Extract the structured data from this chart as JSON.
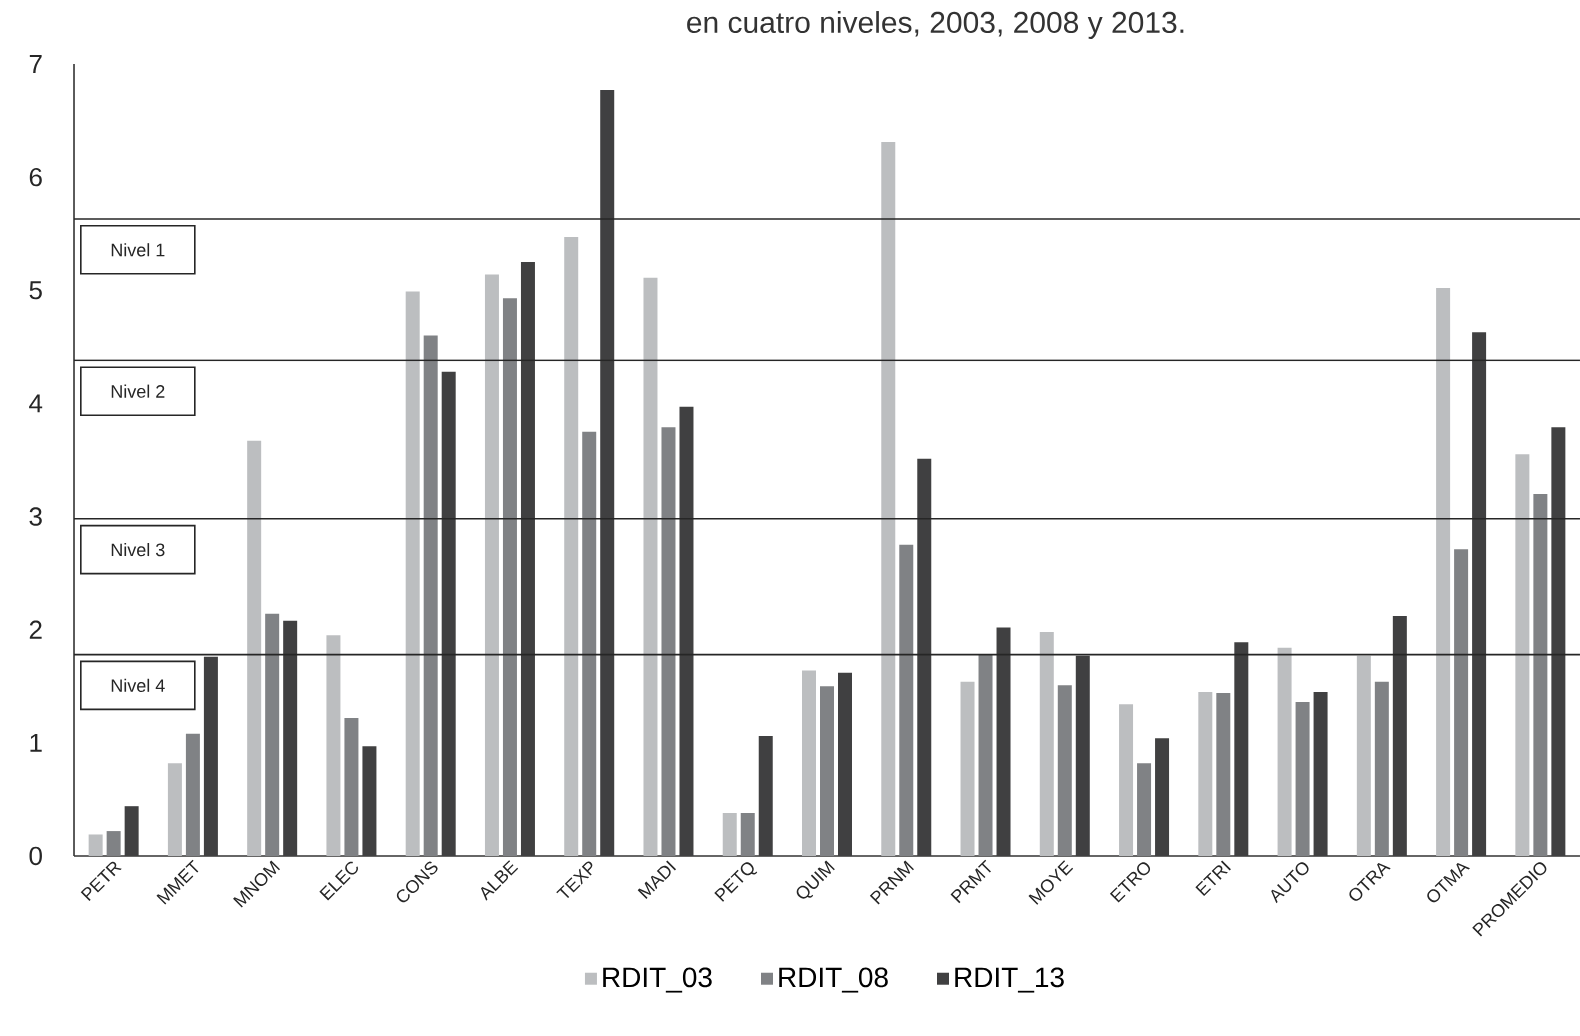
{
  "chart_data": {
    "type": "bar",
    "title": "en cuatro niveles, 2003, 2008 y 2013.",
    "categories": [
      "PETR",
      "MMET",
      "MNOM",
      "ELEC",
      "CONS",
      "ALBE",
      "TEXP",
      "MADI",
      "PETQ",
      "QUIM",
      "PRNM",
      "PRMT",
      "MOYE",
      "ETRO",
      "ETRI",
      "AUTO",
      "OTRA",
      "OTMA",
      "PROMEDIO"
    ],
    "series": [
      {
        "name": "RDIT_03",
        "color": "#bcbec0",
        "values": [
          0.19,
          0.82,
          3.67,
          1.95,
          4.99,
          5.14,
          5.47,
          5.11,
          0.38,
          1.64,
          6.31,
          1.54,
          1.98,
          1.34,
          1.45,
          1.84,
          1.77,
          5.02,
          3.55
        ]
      },
      {
        "name": "RDIT_08",
        "color": "#808285",
        "values": [
          0.22,
          1.08,
          2.14,
          1.22,
          4.6,
          4.93,
          3.75,
          3.79,
          0.38,
          1.5,
          2.75,
          1.78,
          1.51,
          0.82,
          1.44,
          1.36,
          1.54,
          2.71,
          3.2
        ]
      },
      {
        "name": "RDIT_13",
        "color": "#404041",
        "values": [
          0.44,
          1.76,
          2.08,
          0.97,
          4.28,
          5.25,
          6.77,
          3.97,
          1.06,
          1.62,
          3.51,
          2.02,
          1.77,
          1.04,
          1.89,
          1.45,
          2.12,
          4.63,
          3.79
        ]
      }
    ],
    "ylim": [
      0,
      7
    ],
    "yticks": [
      0,
      1,
      2,
      3,
      4,
      5,
      6,
      7
    ],
    "ref_lines": [
      {
        "axis": "y",
        "value": 5.63,
        "label": "Nivel 1"
      },
      {
        "axis": "y",
        "value": 4.38,
        "label": "Nivel 2"
      },
      {
        "axis": "y",
        "value": 2.98,
        "label": "Nivel 3"
      },
      {
        "axis": "y",
        "value": 1.78,
        "label": "Nivel 4"
      }
    ],
    "legend": "bottom"
  }
}
